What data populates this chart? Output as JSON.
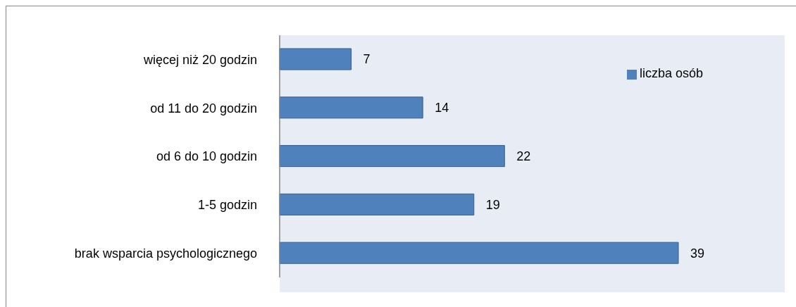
{
  "chart_data": {
    "type": "bar",
    "orientation": "horizontal",
    "categories": [
      "więcej niż 20 godzin",
      "od 11 do 20 godzin",
      "od 6 do 10 godzin",
      "1-5 godzin",
      "brak wsparcia psychologicznego"
    ],
    "series": [
      {
        "name": "liczba osób",
        "color": "#4f81bd",
        "values": [
          7,
          14,
          22,
          19,
          39
        ]
      }
    ],
    "data_labels": true,
    "legend": "top right"
  }
}
